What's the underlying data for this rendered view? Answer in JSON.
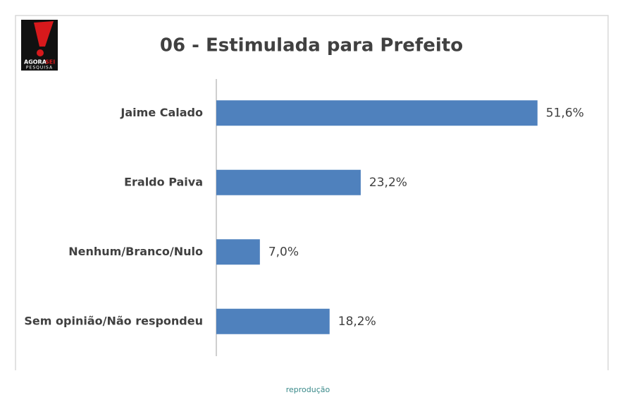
{
  "logo": {
    "brand": "AGORA",
    "brand_accent": "SEI",
    "tagline": "PESQUISA"
  },
  "chart_data": {
    "type": "hbar",
    "title": "06 - Estimulada para Prefeito",
    "categories": [
      "Jaime Calado",
      "Eraldo Paiva",
      "Nenhum/Branco/Nulo",
      "Sem opinião/Não respondeu"
    ],
    "values": [
      51.6,
      23.2,
      7.0,
      18.2
    ],
    "value_labels": [
      "51,6%",
      "23,2%",
      "7,0%",
      "18,2%"
    ],
    "color": "#4f81bd",
    "xlim": [
      0,
      60
    ]
  },
  "caption": "reprodução"
}
